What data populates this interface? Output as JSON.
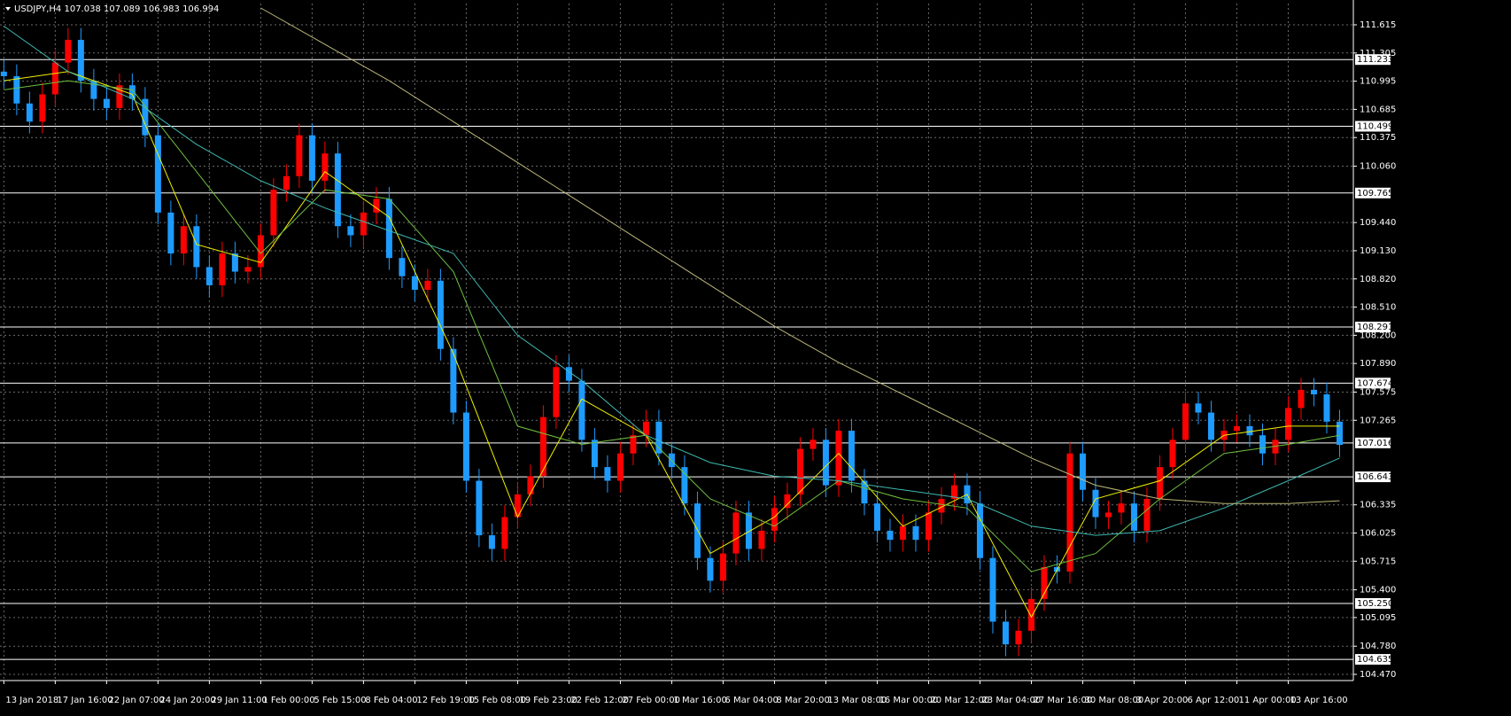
{
  "chart_data": {
    "type": "candlestick",
    "title": "USDJPY,H4  107.038 107.089 106.983 106.994",
    "up_color": "#ff0000",
    "down_color": "#1e9bff",
    "grid": true,
    "xlim": [
      -0.3,
      105.07
    ],
    "ylim": [
      104.402,
      111.849
    ],
    "xticks": [
      {
        "value": 0,
        "label": "13 Jan 2018"
      },
      {
        "value": 4,
        "label": "17 Jan 16:00"
      },
      {
        "value": 8,
        "label": "22 Jan 07:00"
      },
      {
        "value": 12,
        "label": "24 Jan 20:00"
      },
      {
        "value": 16,
        "label": "29 Jan 11:00"
      },
      {
        "value": 20,
        "label": "1 Feb 00:00"
      },
      {
        "value": 24,
        "label": "5 Feb 15:00"
      },
      {
        "value": 28,
        "label": "8 Feb 04:00"
      },
      {
        "value": 32,
        "label": "12 Feb 19:00"
      },
      {
        "value": 36,
        "label": "15 Feb 08:00"
      },
      {
        "value": 40,
        "label": "19 Feb 23:00"
      },
      {
        "value": 44,
        "label": "22 Feb 12:00"
      },
      {
        "value": 48,
        "label": "27 Feb 00:00"
      },
      {
        "value": 52,
        "label": "1 Mar 16:00"
      },
      {
        "value": 56,
        "label": "6 Mar 04:00"
      },
      {
        "value": 60,
        "label": "8 Mar 20:00"
      },
      {
        "value": 64,
        "label": "13 Mar 08:00"
      },
      {
        "value": 68,
        "label": "16 Mar 00:00"
      },
      {
        "value": 72,
        "label": "20 Mar 12:00"
      },
      {
        "value": 76,
        "label": "23 Mar 04:00"
      },
      {
        "value": 80,
        "label": "27 Mar 16:00"
      },
      {
        "value": 84,
        "label": "30 Mar 08:00"
      },
      {
        "value": 88,
        "label": "3 Apr 20:00"
      },
      {
        "value": 92,
        "label": "6 Apr 12:00"
      },
      {
        "value": 96,
        "label": "11 Apr 00:00"
      },
      {
        "value": 100,
        "label": "13 Apr 16:00"
      }
    ],
    "yticks": [
      111.615,
      111.305,
      110.995,
      110.685,
      110.375,
      {
        "value": 110.06,
        "label": "110.060"
      },
      {
        "value": 109.44,
        "label": "109.440"
      },
      {
        "value": 109.13,
        "label": "109.130"
      },
      {
        "value": 108.82,
        "label": "108.820"
      },
      {
        "value": 108.51,
        "label": "108.510"
      },
      {
        "value": 108.2,
        "label": "108.200"
      },
      {
        "value": 107.89,
        "label": "107.890"
      },
      107.575,
      107.265,
      106.335,
      106.025,
      105.715,
      {
        "value": 105.4,
        "label": "105.400"
      },
      105.095,
      {
        "value": 104.78,
        "label": "104.780"
      },
      {
        "value": 104.47,
        "label": "104.470"
      }
    ],
    "levels": [
      111.233,
      110.499,
      109.765,
      108.291,
      107.674,
      107.016,
      106.643,
      {
        "value": 105.25,
        "label": "105.250"
      },
      104.635
    ],
    "open": [
      111.1,
      111.05,
      110.75,
      110.55,
      110.85,
      111.2,
      111.45,
      111.0,
      110.8,
      110.7,
      110.95,
      110.8,
      110.4,
      109.55,
      109.1,
      109.4,
      108.95,
      108.75,
      109.1,
      108.9,
      108.95,
      109.3,
      109.8,
      109.95,
      110.4,
      109.9,
      110.2,
      109.4,
      109.3,
      109.55,
      109.7,
      109.05,
      108.85,
      108.7,
      108.8,
      108.05,
      107.35,
      106.6,
      106.0,
      105.85,
      106.2,
      106.45,
      106.65,
      107.3,
      107.85,
      107.7,
      107.05,
      106.75,
      106.6,
      106.9,
      107.1,
      107.25,
      106.9,
      106.75,
      106.35,
      105.75,
      105.5,
      105.8,
      106.25,
      105.85,
      106.05,
      106.3,
      106.45,
      106.95,
      107.05,
      106.55,
      107.15,
      106.6,
      106.35,
      106.05,
      105.95,
      106.1,
      105.95,
      106.25,
      106.4,
      106.55,
      106.35,
      105.75,
      105.05,
      104.8,
      104.95,
      105.3,
      105.65,
      105.6,
      106.9,
      106.5,
      106.2,
      106.25,
      106.35,
      106.05,
      106.4,
      106.75,
      107.05,
      107.45,
      107.35,
      107.05,
      107.15,
      107.2,
      107.1,
      106.9,
      107.05,
      107.4,
      107.6,
      107.55,
      107.25
    ],
    "high": [
      111.23,
      111.18,
      110.88,
      110.98,
      111.33,
      111.58,
      111.58,
      111.13,
      110.93,
      111.08,
      111.08,
      110.93,
      110.53,
      109.68,
      109.53,
      109.53,
      109.08,
      109.23,
      109.23,
      109.08,
      109.43,
      109.93,
      110.08,
      110.53,
      110.53,
      110.33,
      110.33,
      109.53,
      109.68,
      109.83,
      109.83,
      109.18,
      108.98,
      108.93,
      108.93,
      108.18,
      107.48,
      106.73,
      106.13,
      106.33,
      106.58,
      106.78,
      107.43,
      107.98,
      107.98,
      107.83,
      107.18,
      106.88,
      107.03,
      107.23,
      107.38,
      107.38,
      107.03,
      106.88,
      106.48,
      105.88,
      105.93,
      106.38,
      106.38,
      106.18,
      106.43,
      106.58,
      107.08,
      107.18,
      107.18,
      107.28,
      107.28,
      106.73,
      106.48,
      106.18,
      106.23,
      106.23,
      106.38,
      106.53,
      106.68,
      106.68,
      106.48,
      105.88,
      105.18,
      105.08,
      105.43,
      105.78,
      105.78,
      107.03,
      107.03,
      106.63,
      106.38,
      106.48,
      106.48,
      106.53,
      106.88,
      107.18,
      107.58,
      107.58,
      107.48,
      107.28,
      107.33,
      107.33,
      107.23,
      107.18,
      107.53,
      107.73,
      107.73,
      107.68,
      107.38
    ],
    "low": [
      110.92,
      110.62,
      110.42,
      110.42,
      110.72,
      111.07,
      110.87,
      110.67,
      110.57,
      110.57,
      110.67,
      110.27,
      109.42,
      108.97,
      108.97,
      108.82,
      108.62,
      108.62,
      108.77,
      108.77,
      108.82,
      109.17,
      109.67,
      109.82,
      109.77,
      109.77,
      109.27,
      109.17,
      109.17,
      109.42,
      108.92,
      108.72,
      108.57,
      108.57,
      107.92,
      107.22,
      106.47,
      105.87,
      105.72,
      105.72,
      106.07,
      106.32,
      106.52,
      107.17,
      107.57,
      106.92,
      106.62,
      106.47,
      106.47,
      106.77,
      106.97,
      106.77,
      106.62,
      106.22,
      105.62,
      105.37,
      105.37,
      105.67,
      105.72,
      105.72,
      105.92,
      106.17,
      106.32,
      106.82,
      106.42,
      106.42,
      106.47,
      106.22,
      105.92,
      105.82,
      105.82,
      105.82,
      105.82,
      106.12,
      106.27,
      106.22,
      105.62,
      104.92,
      104.67,
      104.67,
      104.82,
      105.17,
      105.47,
      105.47,
      106.37,
      106.07,
      106.07,
      106.12,
      105.92,
      105.92,
      106.27,
      106.62,
      106.92,
      107.22,
      106.92,
      106.92,
      107.02,
      106.97,
      106.77,
      106.77,
      106.92,
      107.27,
      107.42,
      107.12,
      106.86
    ],
    "close": [
      111.05,
      110.75,
      110.55,
      110.85,
      111.2,
      111.45,
      111.0,
      110.8,
      110.7,
      110.95,
      110.8,
      110.4,
      109.55,
      109.1,
      109.4,
      108.95,
      108.75,
      109.1,
      108.9,
      108.95,
      109.3,
      109.8,
      109.95,
      110.4,
      109.9,
      110.2,
      109.4,
      109.3,
      109.55,
      109.7,
      109.05,
      108.85,
      108.7,
      108.8,
      108.05,
      107.35,
      106.6,
      106.0,
      105.85,
      106.2,
      106.45,
      106.65,
      107.3,
      107.85,
      107.7,
      107.05,
      106.75,
      106.6,
      106.9,
      107.1,
      107.25,
      106.9,
      106.75,
      106.35,
      105.75,
      105.5,
      105.8,
      106.25,
      105.85,
      106.05,
      106.3,
      106.45,
      106.95,
      107.05,
      106.55,
      107.15,
      106.6,
      106.35,
      106.05,
      105.95,
      106.1,
      105.95,
      106.25,
      106.4,
      106.55,
      106.35,
      105.75,
      105.05,
      104.8,
      104.95,
      105.3,
      105.65,
      105.6,
      106.9,
      106.5,
      106.2,
      106.25,
      106.35,
      106.05,
      106.4,
      106.75,
      107.05,
      107.45,
      107.35,
      107.05,
      107.15,
      107.2,
      107.1,
      106.9,
      107.05,
      107.4,
      107.6,
      107.55,
      107.25,
      106.994
    ],
    "ma_x": [
      0,
      5,
      10,
      15,
      20,
      25,
      30,
      35,
      40,
      45,
      50,
      55,
      60,
      65,
      70,
      75,
      80,
      85,
      90,
      95,
      100,
      104
    ],
    "series": [
      {
        "color": "#f0f000",
        "values": [
          111.0,
          111.1,
          110.85,
          109.2,
          109.0,
          110.0,
          109.5,
          108.0,
          106.2,
          107.5,
          107.1,
          105.8,
          106.2,
          106.9,
          106.1,
          106.45,
          105.1,
          106.4,
          106.6,
          107.1,
          107.2,
          107.2
        ]
      },
      {
        "color": "#6fbf3f",
        "values": [
          110.9,
          111.0,
          110.9,
          110.0,
          109.1,
          109.8,
          109.7,
          108.9,
          107.2,
          107.0,
          107.1,
          106.4,
          106.1,
          106.6,
          106.4,
          106.3,
          105.6,
          105.8,
          106.4,
          106.9,
          107.0,
          107.1
        ]
      },
      {
        "color": "#3fb8b0",
        "values": [
          111.6,
          111.1,
          110.8,
          110.3,
          109.9,
          109.6,
          109.35,
          109.1,
          108.2,
          107.7,
          107.1,
          106.8,
          106.65,
          106.6,
          106.5,
          106.4,
          106.1,
          106.0,
          106.05,
          106.3,
          106.6,
          106.85
        ]
      },
      {
        "color": "#bdb87a",
        "values": [
          null,
          null,
          null,
          null,
          111.8,
          111.4,
          111.0,
          110.55,
          110.1,
          109.65,
          109.2,
          108.75,
          108.3,
          107.9,
          107.55,
          107.2,
          106.85,
          106.55,
          106.4,
          106.35,
          106.35,
          106.38
        ]
      }
    ]
  }
}
